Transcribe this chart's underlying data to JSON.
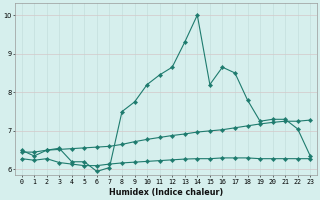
{
  "xlabel": "Humidex (Indice chaleur)",
  "bg_color": "#d6efed",
  "grid_color_v": "#c4dedd",
  "grid_color_h": "#d4c8c8",
  "line_color": "#1e7b6e",
  "xlim": [
    -0.5,
    23.5
  ],
  "ylim": [
    5.85,
    10.3
  ],
  "xticks": [
    0,
    1,
    2,
    3,
    4,
    5,
    6,
    7,
    8,
    9,
    10,
    11,
    12,
    13,
    14,
    15,
    16,
    17,
    18,
    19,
    20,
    21,
    22,
    23
  ],
  "yticks": [
    6,
    7,
    8,
    9,
    10
  ],
  "line1_x": [
    0,
    1,
    2,
    3,
    4,
    5,
    6,
    7,
    8,
    9,
    10,
    11,
    12,
    13,
    14,
    15,
    16,
    17,
    18,
    19,
    20,
    21,
    22,
    23
  ],
  "line1_y": [
    6.5,
    6.35,
    6.5,
    6.55,
    6.2,
    6.2,
    5.95,
    6.05,
    7.5,
    7.75,
    8.2,
    8.45,
    8.65,
    9.3,
    10.0,
    8.2,
    8.65,
    8.5,
    7.8,
    7.25,
    7.3,
    7.3,
    7.05,
    6.35
  ],
  "line2_x": [
    0,
    1,
    2,
    3,
    4,
    5,
    6,
    7,
    8,
    9,
    10,
    11,
    12,
    13,
    14,
    15,
    16,
    17,
    18,
    19,
    20,
    21,
    22,
    23
  ],
  "line2_y": [
    6.45,
    6.45,
    6.5,
    6.52,
    6.54,
    6.56,
    6.58,
    6.6,
    6.65,
    6.72,
    6.78,
    6.83,
    6.88,
    6.92,
    6.97,
    7.0,
    7.03,
    7.08,
    7.13,
    7.18,
    7.22,
    7.25,
    7.25,
    7.28
  ],
  "line3_x": [
    0,
    1,
    2,
    3,
    4,
    5,
    6,
    7,
    8,
    9,
    10,
    11,
    12,
    13,
    14,
    15,
    16,
    17,
    18,
    19,
    20,
    21,
    22,
    23
  ],
  "line3_y": [
    6.28,
    6.24,
    6.28,
    6.18,
    6.14,
    6.1,
    6.1,
    6.14,
    6.17,
    6.19,
    6.21,
    6.23,
    6.25,
    6.27,
    6.28,
    6.28,
    6.3,
    6.3,
    6.3,
    6.28,
    6.28,
    6.28,
    6.28,
    6.28
  ]
}
